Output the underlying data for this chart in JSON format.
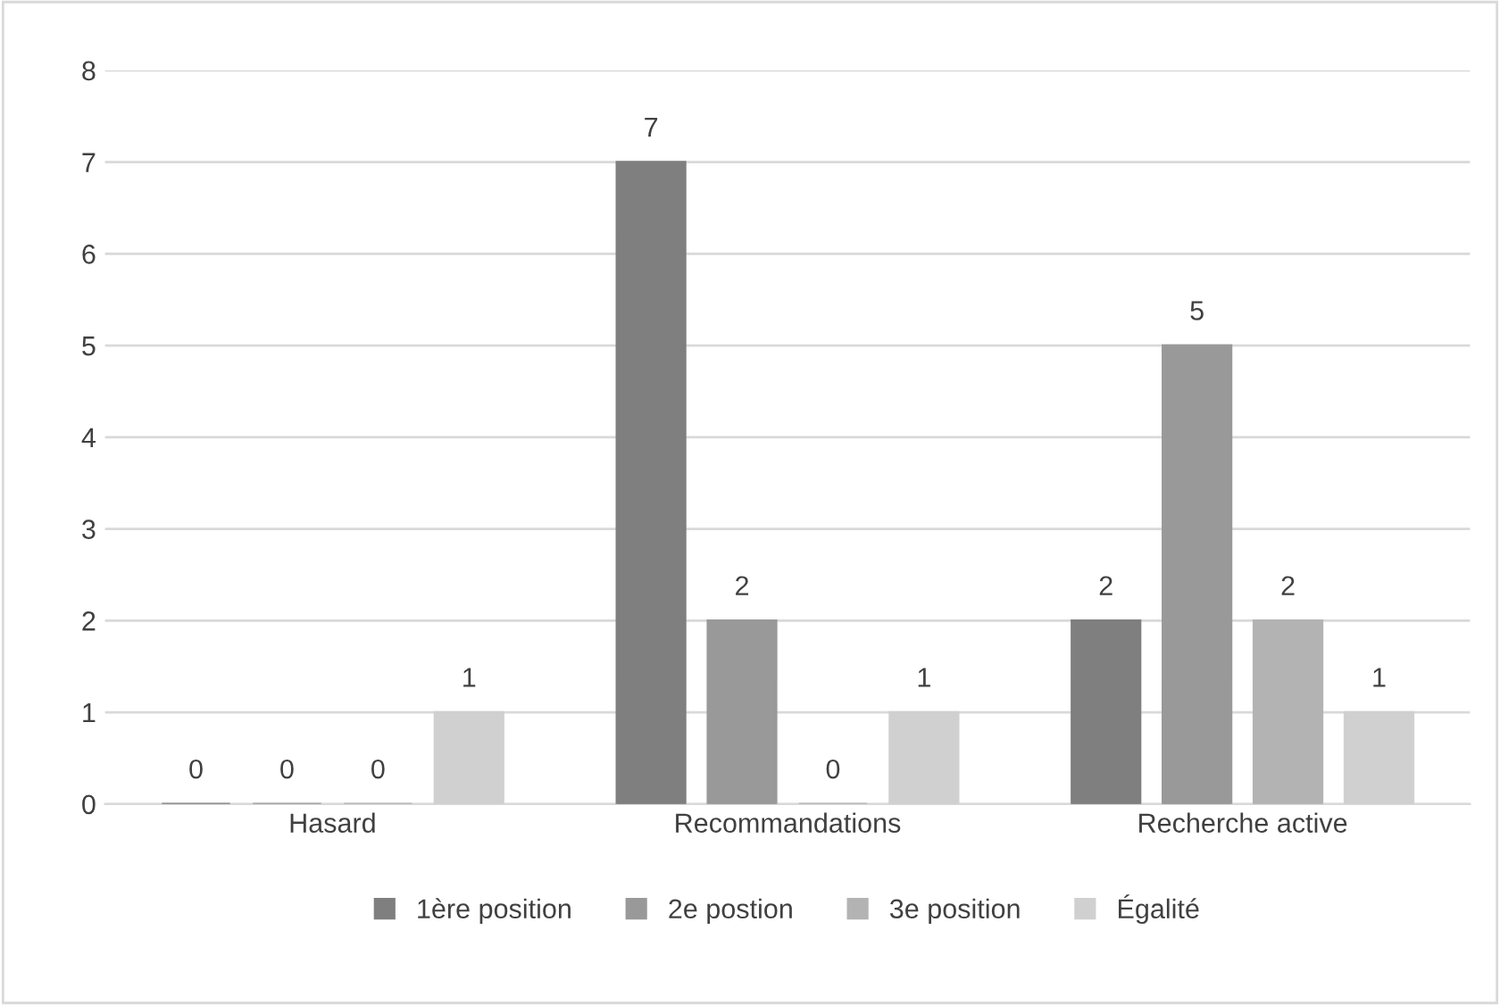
{
  "chart_data": {
    "type": "bar",
    "categories": [
      "Hasard",
      "Recommandations",
      "Recherche active"
    ],
    "series": [
      {
        "name": "1ère position",
        "color": "#7f7f7f",
        "values": [
          0,
          7,
          2
        ]
      },
      {
        "name": "2e postion",
        "color": "#999999",
        "values": [
          0,
          2,
          5
        ]
      },
      {
        "name": "3e position",
        "color": "#b3b3b3",
        "values": [
          0,
          0,
          2
        ]
      },
      {
        "name": "Égalité",
        "color": "#d0d0d0",
        "values": [
          1,
          1,
          1
        ]
      }
    ],
    "ylim": [
      0,
      8
    ],
    "yticks": [
      0,
      1,
      2,
      3,
      4,
      5,
      6,
      7,
      8
    ],
    "grid": "y",
    "legend": "bottom",
    "data_labels": true
  }
}
